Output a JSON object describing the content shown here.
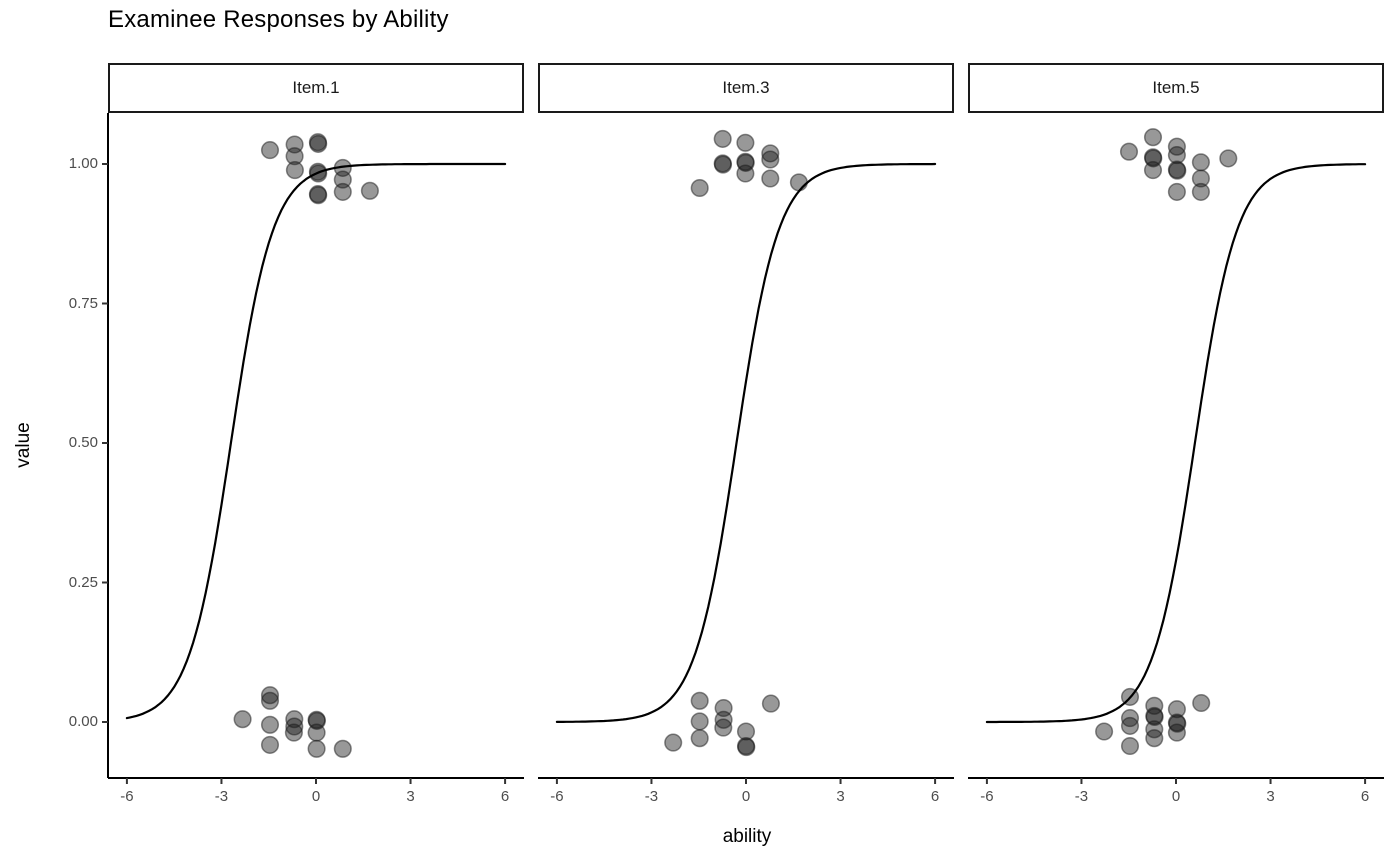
{
  "title": "Examinee Responses by Ability",
  "axes": {
    "x_label": "ability",
    "y_label": "value",
    "x_ticks": [
      "-6",
      "-3",
      "0",
      "3",
      "6"
    ],
    "x_tick_values": [
      -6,
      -3,
      0,
      3,
      6
    ],
    "y_ticks": [
      "0.00",
      "0.25",
      "0.50",
      "0.75",
      "1.00"
    ],
    "y_tick_values": [
      0,
      0.25,
      0.5,
      0.75,
      1
    ]
  },
  "colors": {
    "background": "#ffffff",
    "point": "#1a1a1a",
    "curve": "#000000",
    "axis_line": "#000000",
    "tick_mark": "#333333",
    "tick_label": "#4d4d4d",
    "strip_border": "#1a1a1a",
    "strip_fill": "#ffffff"
  },
  "chart_data": {
    "type": "scatter",
    "title": "Examinee Responses by Ability",
    "xlabel": "ability",
    "ylabel": "value",
    "xlim": [
      -6.6,
      6.6
    ],
    "ylim": [
      -0.1,
      1.09
    ],
    "grid": false,
    "legend": false,
    "point_alpha": 0.45,
    "curve_note": "2PL logistic item characteristic curve p=1/(1+exp(-a*(theta-b))) drawn from -6 to 6",
    "facets": [
      {
        "label": "Item.1",
        "curve": {
          "model": "logistic",
          "a": 1.5,
          "b": -2.7
        },
        "points": [
          [
            -1.46,
            1.025
          ],
          [
            -0.68,
            1.035
          ],
          [
            -0.68,
            1.014
          ],
          [
            0.06,
            1.039
          ],
          [
            0.07,
            1.036
          ],
          [
            -0.67,
            0.989
          ],
          [
            0.06,
            0.986
          ],
          [
            0.07,
            0.983
          ],
          [
            0.85,
            0.993
          ],
          [
            0.85,
            0.972
          ],
          [
            0.06,
            0.946
          ],
          [
            0.07,
            0.944
          ],
          [
            0.85,
            0.95
          ],
          [
            1.71,
            0.952
          ],
          [
            -1.46,
            0.048
          ],
          [
            -1.46,
            0.038
          ],
          [
            -2.33,
            0.005
          ],
          [
            -1.46,
            -0.005
          ],
          [
            -0.69,
            0.005
          ],
          [
            -0.69,
            -0.008
          ],
          [
            -0.7,
            -0.019
          ],
          [
            0.02,
            0.004
          ],
          [
            0.03,
            0.002
          ],
          [
            0.02,
            -0.019
          ],
          [
            -1.46,
            -0.041
          ],
          [
            0.02,
            -0.048
          ],
          [
            0.85,
            -0.048
          ]
        ]
      },
      {
        "label": "Item.3",
        "curve": {
          "model": "logistic",
          "a": 1.5,
          "b": -0.3
        },
        "points": [
          [
            -0.74,
            1.045
          ],
          [
            -0.02,
            1.038
          ],
          [
            -0.74,
            1.001
          ],
          [
            -0.73,
            0.999
          ],
          [
            -0.02,
            1.004
          ],
          [
            -0.01,
            1.002
          ],
          [
            -0.02,
            0.983
          ],
          [
            0.77,
            1.019
          ],
          [
            0.77,
            1.008
          ],
          [
            0.77,
            0.974
          ],
          [
            -1.47,
            0.957
          ],
          [
            1.68,
            0.967
          ],
          [
            -1.47,
            0.038
          ],
          [
            -0.71,
            0.025
          ],
          [
            -0.71,
            0.004
          ],
          [
            -0.72,
            -0.01
          ],
          [
            -1.47,
            0.001
          ],
          [
            -1.47,
            -0.029
          ],
          [
            -2.31,
            -0.037
          ],
          [
            0.0,
            -0.017
          ],
          [
            0.0,
            -0.043
          ],
          [
            0.01,
            -0.045
          ],
          [
            0.79,
            0.033
          ]
        ]
      },
      {
        "label": "Item.5",
        "curve": {
          "model": "logistic",
          "a": 1.5,
          "b": 0.6
        },
        "points": [
          [
            -1.49,
            1.022
          ],
          [
            -0.73,
            1.048
          ],
          [
            -0.73,
            1.012
          ],
          [
            -0.72,
            1.01
          ],
          [
            -0.73,
            0.989
          ],
          [
            0.03,
            1.031
          ],
          [
            0.03,
            1.016
          ],
          [
            0.03,
            0.99
          ],
          [
            0.04,
            0.988
          ],
          [
            0.79,
            1.003
          ],
          [
            0.79,
            0.974
          ],
          [
            0.79,
            0.95
          ],
          [
            1.66,
            1.01
          ],
          [
            0.03,
            0.95
          ],
          [
            -2.28,
            -0.017
          ],
          [
            -1.46,
            0.045
          ],
          [
            -1.46,
            0.007
          ],
          [
            -1.46,
            -0.007
          ],
          [
            -1.46,
            -0.043
          ],
          [
            -0.69,
            0.029
          ],
          [
            -0.69,
            0.011
          ],
          [
            -0.68,
            0.009
          ],
          [
            -0.69,
            -0.013
          ],
          [
            -0.69,
            -0.029
          ],
          [
            0.03,
            0.023
          ],
          [
            0.03,
            -0.001
          ],
          [
            0.04,
            -0.003
          ],
          [
            0.03,
            -0.019
          ],
          [
            0.8,
            0.034
          ]
        ]
      }
    ]
  }
}
